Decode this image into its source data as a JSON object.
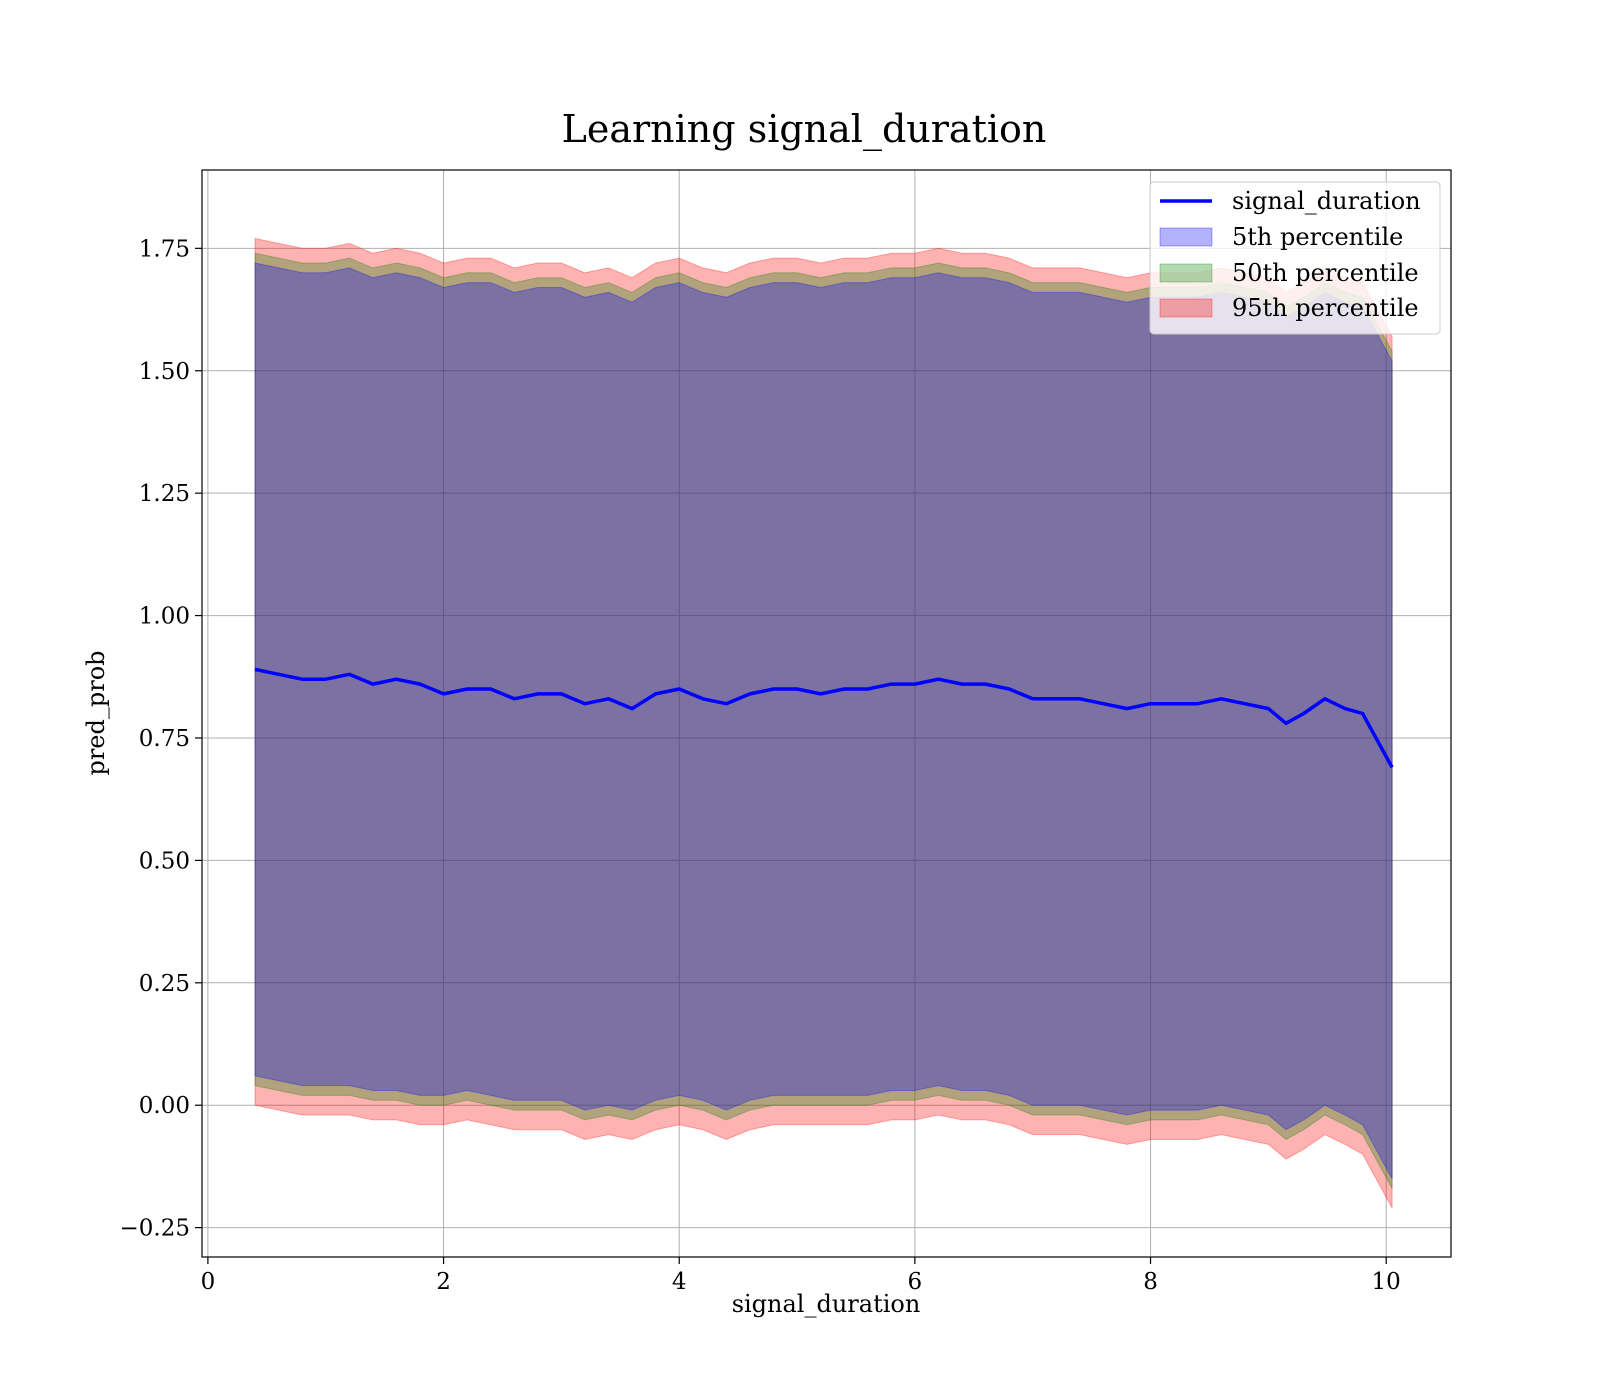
{
  "chart_data": {
    "type": "area",
    "title": "Learning signal_duration",
    "xlabel": "signal_duration",
    "ylabel": "pred_prob",
    "xlim": [
      -0.05,
      10.55
    ],
    "ylim": [
      -0.31,
      1.91
    ],
    "x_ticks": [
      0,
      2,
      4,
      6,
      8,
      10
    ],
    "x_tick_labels": [
      "0",
      "2",
      "4",
      "6",
      "8",
      "10"
    ],
    "y_ticks": [
      -0.25,
      0.0,
      0.25,
      0.5,
      0.75,
      1.0,
      1.25,
      1.5,
      1.75
    ],
    "y_tick_labels": [
      "−0.25",
      "0.00",
      "0.25",
      "0.50",
      "0.75",
      "1.00",
      "1.25",
      "1.50",
      "1.75"
    ],
    "grid": true,
    "legend_position": "top-right",
    "x": [
      0.4,
      0.6,
      0.8,
      1.0,
      1.2,
      1.4,
      1.6,
      1.8,
      2.0,
      2.2,
      2.4,
      2.6,
      2.8,
      3.0,
      3.2,
      3.4,
      3.6,
      3.8,
      4.0,
      4.2,
      4.4,
      4.6,
      4.8,
      5.0,
      5.2,
      5.4,
      5.6,
      5.8,
      6.0,
      6.2,
      6.4,
      6.6,
      6.8,
      7.0,
      7.2,
      7.4,
      7.6,
      7.8,
      8.0,
      8.2,
      8.4,
      8.6,
      8.8,
      9.0,
      9.15,
      9.3,
      9.48,
      9.65,
      9.8,
      10.05
    ],
    "series": [
      {
        "name": "signal_duration",
        "kind": "line",
        "color": "#0000ff",
        "values": [
          0.89,
          0.88,
          0.87,
          0.87,
          0.88,
          0.86,
          0.87,
          0.86,
          0.84,
          0.85,
          0.85,
          0.83,
          0.84,
          0.84,
          0.82,
          0.83,
          0.81,
          0.84,
          0.85,
          0.83,
          0.82,
          0.84,
          0.85,
          0.85,
          0.84,
          0.85,
          0.85,
          0.86,
          0.86,
          0.87,
          0.86,
          0.86,
          0.85,
          0.83,
          0.83,
          0.83,
          0.82,
          0.81,
          0.82,
          0.82,
          0.82,
          0.83,
          0.82,
          0.81,
          0.78,
          0.8,
          0.83,
          0.81,
          0.8,
          0.69
        ]
      },
      {
        "name": "5th percentile",
        "kind": "band",
        "color": "#0000ff",
        "lower": [
          0.06,
          0.05,
          0.04,
          0.04,
          0.04,
          0.03,
          0.03,
          0.02,
          0.02,
          0.03,
          0.02,
          0.01,
          0.01,
          0.01,
          -0.01,
          0.0,
          -0.01,
          0.01,
          0.02,
          0.01,
          -0.01,
          0.01,
          0.02,
          0.02,
          0.02,
          0.02,
          0.02,
          0.03,
          0.03,
          0.04,
          0.03,
          0.03,
          0.02,
          0.0,
          0.0,
          0.0,
          -0.01,
          -0.02,
          -0.01,
          -0.01,
          -0.01,
          0.0,
          -0.01,
          -0.02,
          -0.05,
          -0.03,
          0.0,
          -0.02,
          -0.04,
          -0.15
        ],
        "upper": [
          1.72,
          1.71,
          1.7,
          1.7,
          1.71,
          1.69,
          1.7,
          1.69,
          1.67,
          1.68,
          1.68,
          1.66,
          1.67,
          1.67,
          1.65,
          1.66,
          1.64,
          1.67,
          1.68,
          1.66,
          1.65,
          1.67,
          1.68,
          1.68,
          1.67,
          1.68,
          1.68,
          1.69,
          1.69,
          1.7,
          1.69,
          1.69,
          1.68,
          1.66,
          1.66,
          1.66,
          1.65,
          1.64,
          1.65,
          1.65,
          1.65,
          1.66,
          1.65,
          1.64,
          1.61,
          1.63,
          1.66,
          1.64,
          1.63,
          1.52
        ]
      },
      {
        "name": "50th percentile",
        "kind": "band",
        "color": "#008000",
        "lower": [
          0.04,
          0.03,
          0.02,
          0.02,
          0.02,
          0.01,
          0.01,
          0.0,
          0.0,
          0.01,
          0.0,
          -0.01,
          -0.01,
          -0.01,
          -0.03,
          -0.02,
          -0.03,
          -0.01,
          0.0,
          -0.01,
          -0.03,
          -0.01,
          0.0,
          0.0,
          0.0,
          0.0,
          0.0,
          0.01,
          0.01,
          0.02,
          0.01,
          0.01,
          0.0,
          -0.02,
          -0.02,
          -0.02,
          -0.03,
          -0.04,
          -0.03,
          -0.03,
          -0.03,
          -0.02,
          -0.03,
          -0.04,
          -0.07,
          -0.05,
          -0.02,
          -0.04,
          -0.06,
          -0.17
        ],
        "upper": [
          1.74,
          1.73,
          1.72,
          1.72,
          1.73,
          1.71,
          1.72,
          1.71,
          1.69,
          1.7,
          1.7,
          1.68,
          1.69,
          1.69,
          1.67,
          1.68,
          1.66,
          1.69,
          1.7,
          1.68,
          1.67,
          1.69,
          1.7,
          1.7,
          1.69,
          1.7,
          1.7,
          1.71,
          1.71,
          1.72,
          1.71,
          1.71,
          1.7,
          1.68,
          1.68,
          1.68,
          1.67,
          1.66,
          1.67,
          1.67,
          1.67,
          1.68,
          1.67,
          1.66,
          1.63,
          1.65,
          1.68,
          1.66,
          1.65,
          1.54
        ]
      },
      {
        "name": "95th percentile",
        "kind": "band",
        "color": "#ff0000",
        "lower": [
          0.0,
          -0.01,
          -0.02,
          -0.02,
          -0.02,
          -0.03,
          -0.03,
          -0.04,
          -0.04,
          -0.03,
          -0.04,
          -0.05,
          -0.05,
          -0.05,
          -0.07,
          -0.06,
          -0.07,
          -0.05,
          -0.04,
          -0.05,
          -0.07,
          -0.05,
          -0.04,
          -0.04,
          -0.04,
          -0.04,
          -0.04,
          -0.03,
          -0.03,
          -0.02,
          -0.03,
          -0.03,
          -0.04,
          -0.06,
          -0.06,
          -0.06,
          -0.07,
          -0.08,
          -0.07,
          -0.07,
          -0.07,
          -0.06,
          -0.07,
          -0.08,
          -0.11,
          -0.09,
          -0.06,
          -0.08,
          -0.1,
          -0.21
        ],
        "upper": [
          1.77,
          1.76,
          1.75,
          1.75,
          1.76,
          1.74,
          1.75,
          1.74,
          1.72,
          1.73,
          1.73,
          1.71,
          1.72,
          1.72,
          1.7,
          1.71,
          1.69,
          1.72,
          1.73,
          1.71,
          1.7,
          1.72,
          1.73,
          1.73,
          1.72,
          1.73,
          1.73,
          1.74,
          1.74,
          1.75,
          1.74,
          1.74,
          1.73,
          1.71,
          1.71,
          1.71,
          1.7,
          1.69,
          1.7,
          1.7,
          1.7,
          1.71,
          1.7,
          1.69,
          1.66,
          1.68,
          1.71,
          1.69,
          1.68,
          1.57
        ]
      }
    ]
  }
}
